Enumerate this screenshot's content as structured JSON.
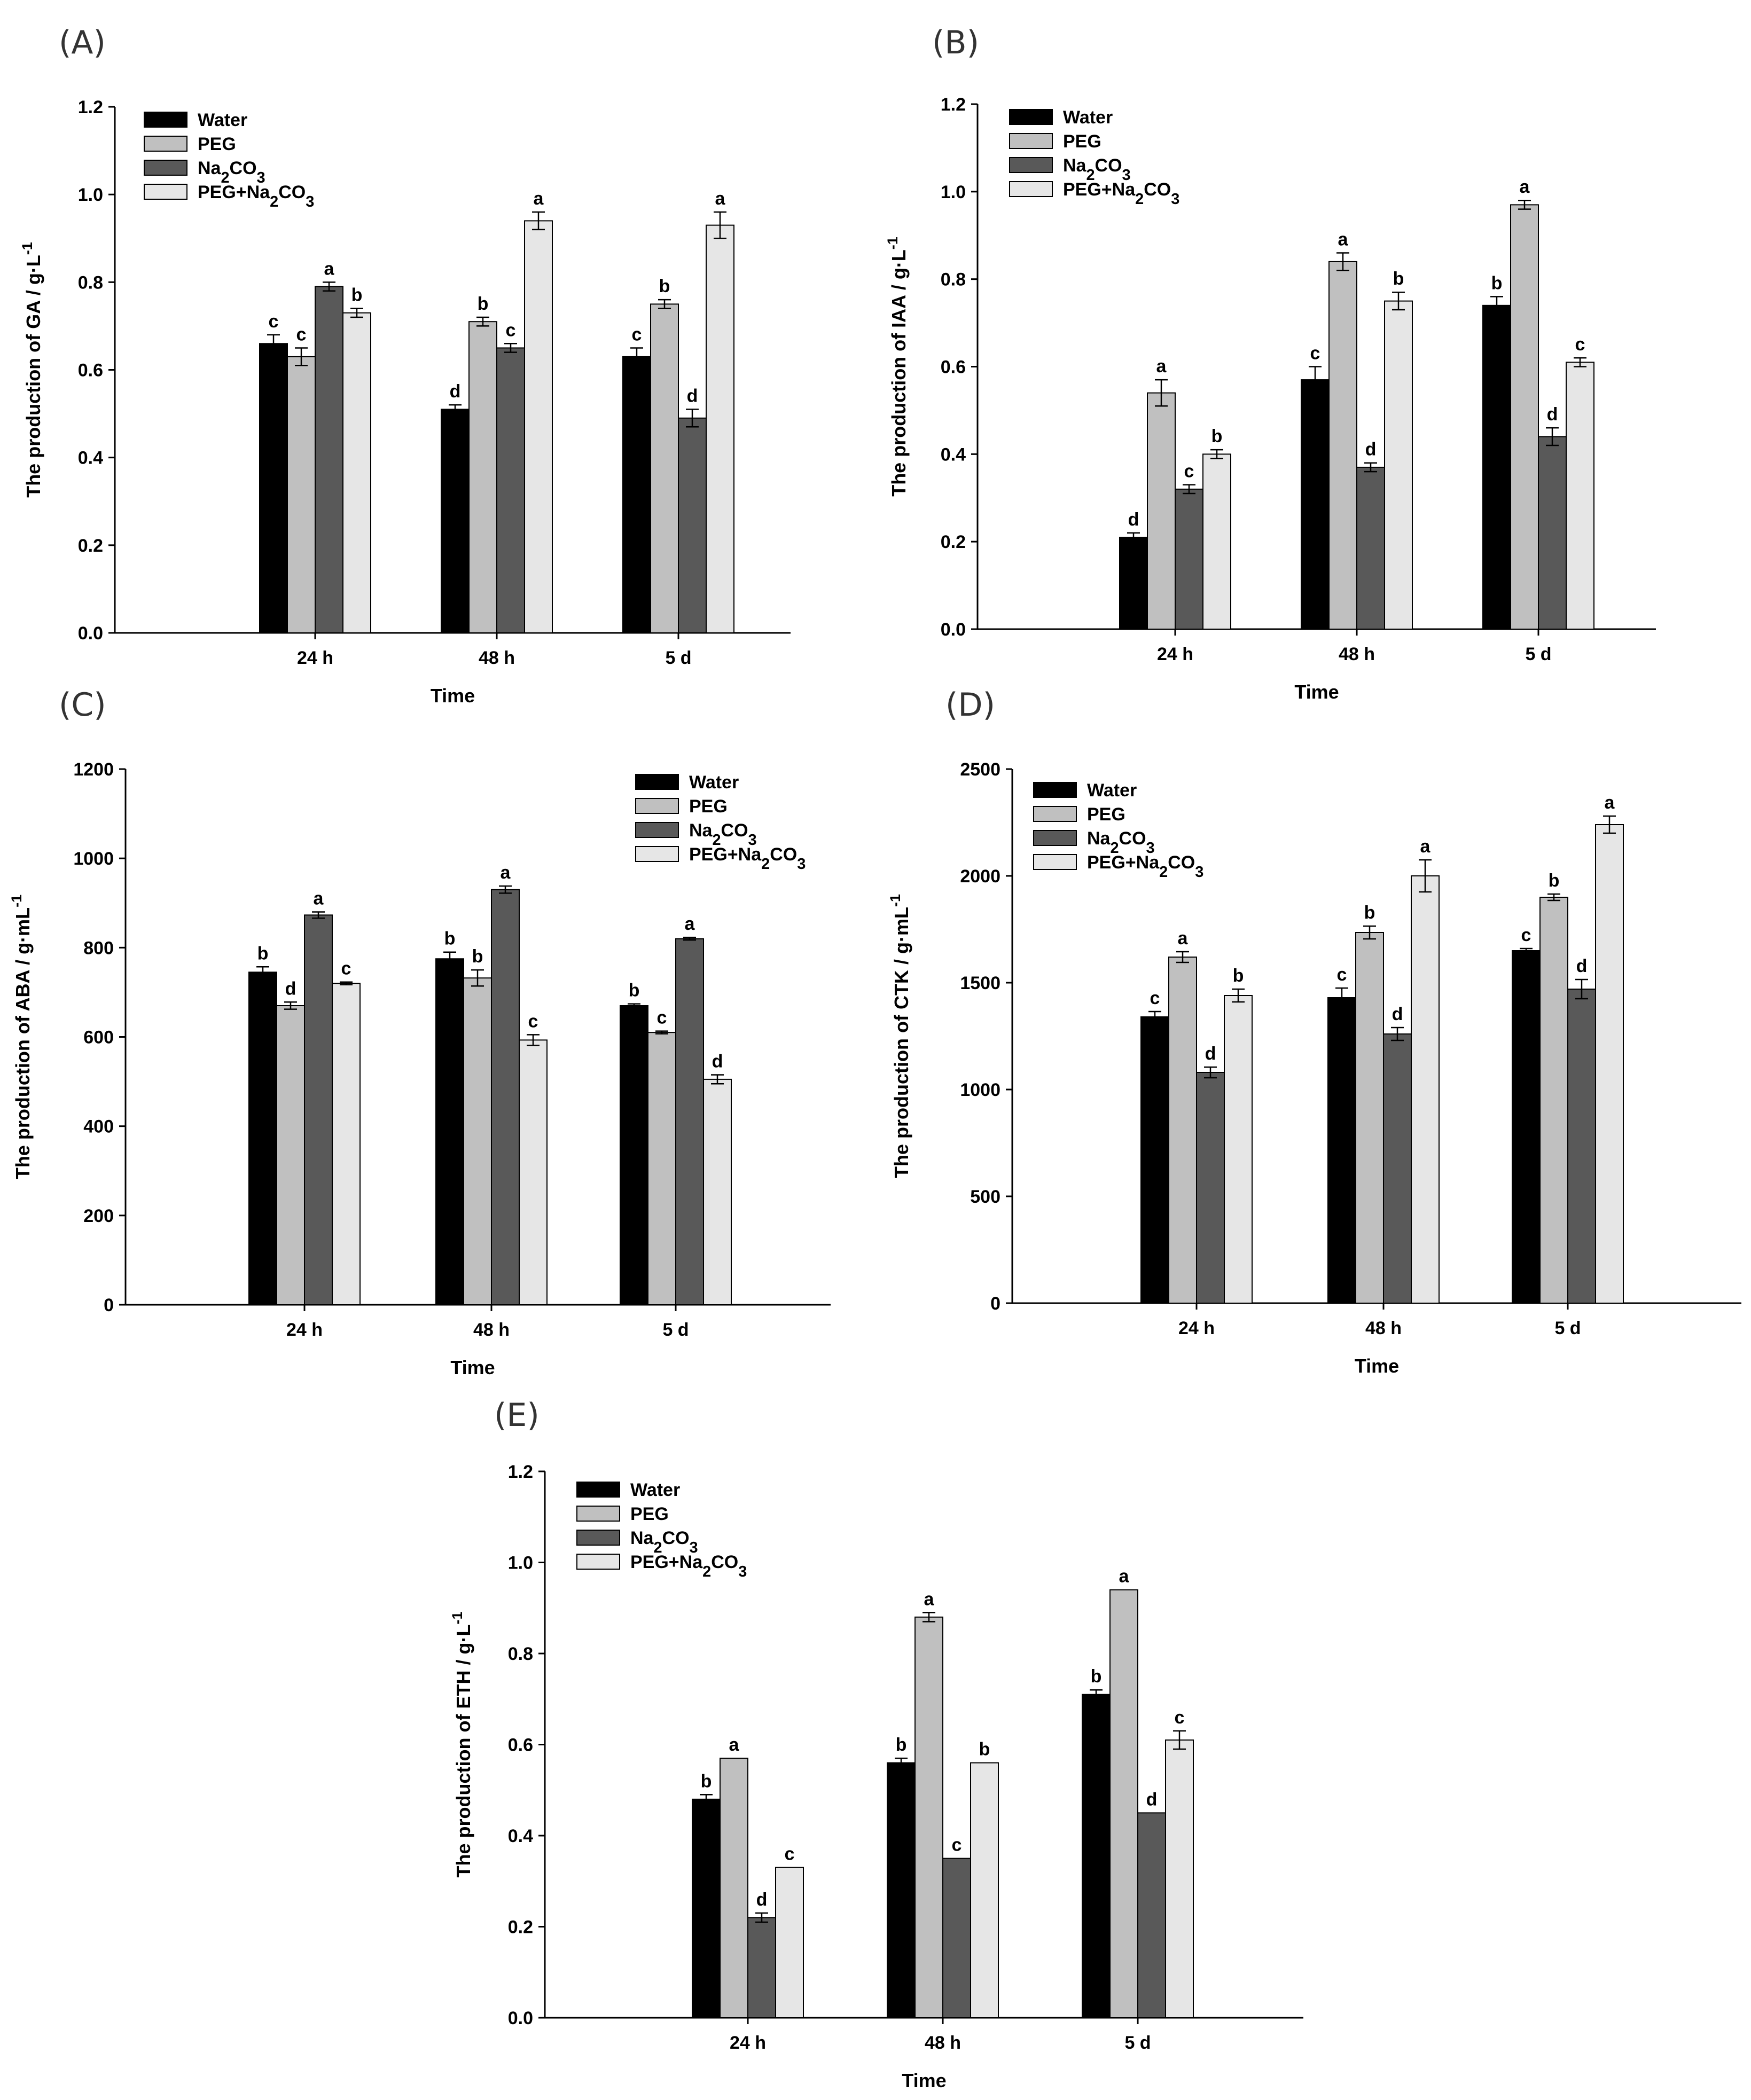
{
  "legend": {
    "series_names": [
      "Water",
      "PEG",
      "Na2CO3",
      "PEG+Na2CO3"
    ],
    "colors": [
      "#000000",
      "#c0c0c0",
      "#595959",
      "#e6e6e6"
    ]
  },
  "chart_data": [
    {
      "type": "bar",
      "panel": "(A)",
      "ylabel": "The production of GA / g·L-1",
      "xlabel": "Time",
      "categories": [
        "24 h",
        "48 h",
        "5 d"
      ],
      "ylim": [
        0,
        1.2
      ],
      "yticks": [
        "0.0",
        "0.2",
        "0.4",
        "0.6",
        "0.8",
        "1.0",
        "1.2"
      ],
      "legend_position": "top-left",
      "series": [
        {
          "name": "Water",
          "values": [
            0.66,
            0.51,
            0.63
          ],
          "errors": [
            0.02,
            0.01,
            0.02
          ],
          "labels": [
            "c",
            "d",
            "c"
          ]
        },
        {
          "name": "PEG",
          "values": [
            0.63,
            0.71,
            0.75
          ],
          "errors": [
            0.02,
            0.01,
            0.01
          ],
          "labels": [
            "c",
            "b",
            "b"
          ]
        },
        {
          "name": "Na2CO3",
          "values": [
            0.79,
            0.65,
            0.49
          ],
          "errors": [
            0.01,
            0.01,
            0.02
          ],
          "labels": [
            "a",
            "c",
            "d"
          ]
        },
        {
          "name": "PEG+Na2CO3",
          "values": [
            0.73,
            0.94,
            0.93
          ],
          "errors": [
            0.01,
            0.02,
            0.03
          ],
          "labels": [
            "b",
            "a",
            "a"
          ]
        }
      ]
    },
    {
      "type": "bar",
      "panel": "(B)",
      "ylabel": "The production of IAA / g·L-1",
      "xlabel": "Time",
      "categories": [
        "24 h",
        "48 h",
        "5 d"
      ],
      "ylim": [
        0,
        1.2
      ],
      "yticks": [
        "0.0",
        "0.2",
        "0.4",
        "0.6",
        "0.8",
        "1.0",
        "1.2"
      ],
      "legend_position": "top-left",
      "series": [
        {
          "name": "Water",
          "values": [
            0.21,
            0.57,
            0.74
          ],
          "errors": [
            0.01,
            0.03,
            0.02
          ],
          "labels": [
            "d",
            "c",
            "b"
          ]
        },
        {
          "name": "PEG",
          "values": [
            0.54,
            0.84,
            0.97
          ],
          "errors": [
            0.03,
            0.02,
            0.01
          ],
          "labels": [
            "a",
            "a",
            "a"
          ]
        },
        {
          "name": "Na2CO3",
          "values": [
            0.32,
            0.37,
            0.44
          ],
          "errors": [
            0.01,
            0.01,
            0.02
          ],
          "labels": [
            "c",
            "d",
            "d"
          ]
        },
        {
          "name": "PEG+Na2CO3",
          "values": [
            0.4,
            0.75,
            0.61
          ],
          "errors": [
            0.01,
            0.02,
            0.01
          ],
          "labels": [
            "b",
            "b",
            "c"
          ]
        }
      ]
    },
    {
      "type": "bar",
      "panel": "(C)",
      "ylabel": "The production of ABA / g·mL-1",
      "xlabel": "Time",
      "categories": [
        "24 h",
        "48 h",
        "5 d"
      ],
      "ylim": [
        0,
        1200
      ],
      "yticks": [
        "0",
        "200",
        "400",
        "600",
        "800",
        "1000",
        "1200"
      ],
      "legend_position": "top-right",
      "series": [
        {
          "name": "Water",
          "values": [
            745,
            775,
            670
          ],
          "errors": [
            12,
            15,
            4
          ],
          "labels": [
            "b",
            "b",
            "b"
          ]
        },
        {
          "name": "PEG",
          "values": [
            670,
            732,
            610
          ],
          "errors": [
            8,
            18,
            3
          ],
          "labels": [
            "d",
            "b",
            "c"
          ]
        },
        {
          "name": "Na2CO3",
          "values": [
            873,
            930,
            820
          ],
          "errors": [
            7,
            8,
            3
          ],
          "labels": [
            "a",
            "a",
            "a"
          ]
        },
        {
          "name": "PEG+Na2CO3",
          "values": [
            720,
            593,
            505
          ],
          "errors": [
            3,
            12,
            10
          ],
          "labels": [
            "c",
            "c",
            "d"
          ]
        }
      ]
    },
    {
      "type": "bar",
      "panel": "(D)",
      "ylabel": "The production of CTK / g·mL-1",
      "xlabel": "Time",
      "categories": [
        "24 h",
        "48 h",
        "5 d"
      ],
      "ylim": [
        0,
        2500
      ],
      "yticks": [
        "0",
        "500",
        "1000",
        "1500",
        "2000",
        "2500"
      ],
      "legend_position": "top-left",
      "series": [
        {
          "name": "Water",
          "values": [
            1340,
            1430,
            1650
          ],
          "errors": [
            25,
            45,
            10
          ],
          "labels": [
            "c",
            "c",
            "c"
          ]
        },
        {
          "name": "PEG",
          "values": [
            1620,
            1735,
            1900
          ],
          "errors": [
            25,
            30,
            15
          ],
          "labels": [
            "a",
            "b",
            "b"
          ]
        },
        {
          "name": "Na2CO3",
          "values": [
            1080,
            1260,
            1470
          ],
          "errors": [
            25,
            30,
            45
          ],
          "labels": [
            "d",
            "d",
            "d"
          ]
        },
        {
          "name": "PEG+Na2CO3",
          "values": [
            1440,
            2000,
            2240
          ],
          "errors": [
            30,
            75,
            40
          ],
          "labels": [
            "b",
            "a",
            "a"
          ]
        }
      ]
    },
    {
      "type": "bar",
      "panel": "(E)",
      "ylabel": "The production of ETH / g·L-1",
      "xlabel": "Time",
      "categories": [
        "24 h",
        "48 h",
        "5 d"
      ],
      "ylim": [
        0,
        1.2
      ],
      "yticks": [
        "0.0",
        "0.2",
        "0.4",
        "0.6",
        "0.8",
        "1.0",
        "1.2"
      ],
      "legend_position": "top-left",
      "series": [
        {
          "name": "Water",
          "values": [
            0.48,
            0.56,
            0.71
          ],
          "errors": [
            0.01,
            0.01,
            0.01
          ],
          "labels": [
            "b",
            "b",
            "b"
          ]
        },
        {
          "name": "PEG",
          "values": [
            0.57,
            0.88,
            0.94
          ],
          "errors": [
            0.0,
            0.01,
            0.0
          ],
          "labels": [
            "a",
            "a",
            "a"
          ]
        },
        {
          "name": "Na2CO3",
          "values": [
            0.22,
            0.35,
            0.45
          ],
          "errors": [
            0.01,
            0.0,
            0.0
          ],
          "labels": [
            "d",
            "c",
            "d"
          ]
        },
        {
          "name": "PEG+Na2CO3",
          "values": [
            0.33,
            0.56,
            0.61
          ],
          "errors": [
            0.0,
            0.0,
            0.02
          ],
          "labels": [
            "c",
            "b",
            "c"
          ]
        }
      ]
    }
  ]
}
